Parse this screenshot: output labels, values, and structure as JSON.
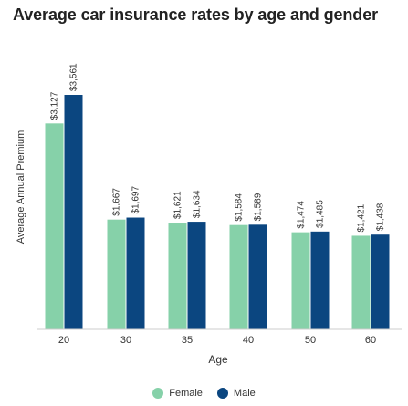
{
  "chart_data": {
    "type": "bar",
    "title": "Average car insurance rates by age and gender",
    "xlabel": "Age",
    "ylabel": "Average Annual Premium",
    "categories": [
      "20",
      "30",
      "35",
      "40",
      "50",
      "60"
    ],
    "series": [
      {
        "name": "Female",
        "values": [
          3127,
          1667,
          1621,
          1584,
          1474,
          1421
        ],
        "color": "#86d1a9"
      },
      {
        "name": "Male",
        "values": [
          3561,
          1697,
          1634,
          1589,
          1485,
          1438
        ],
        "color": "#0b4680"
      }
    ],
    "data_labels": {
      "Female": [
        "$3,127",
        "$1,667",
        "$1,621",
        "$1,584",
        "$1,474",
        "$1,421"
      ],
      "Male": [
        "$3,561",
        "$1,697",
        "$1,634",
        "$1,589",
        "$1,485",
        "$1,438"
      ]
    },
    "ylim": [
      0,
      3600
    ],
    "grid": false,
    "legend_position": "bottom"
  },
  "legend": {
    "female_label": "Female",
    "male_label": "Male",
    "female_color": "#86d1a9",
    "male_color": "#0b4680"
  }
}
